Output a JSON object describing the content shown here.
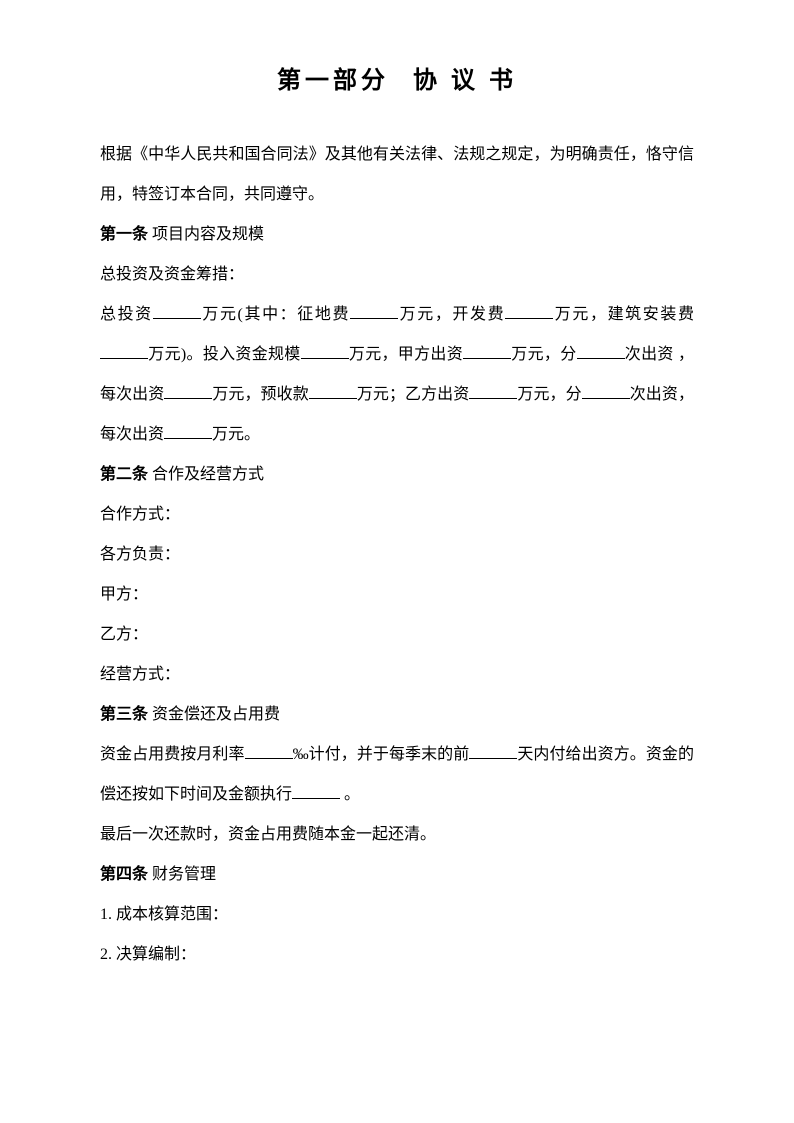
{
  "title": {
    "part1": "第一部分",
    "part2": "协 议 书"
  },
  "intro": "根据《中华人民共和国合同法》及其他有关法律、法规之规定，为明确责任，恪守信用，特签订本合同，共同遵守。",
  "article1": {
    "label": "第一条",
    "title": "项目内容及规模",
    "line1": "总投资及资金筹措：",
    "text_parts": {
      "p1": "总投资",
      "p2": "万元(其中：征地费",
      "p3": "万元，开发费",
      "p4": "万元，建筑安装费",
      "p5": "万元)。投入资金规模",
      "p6": "万元，甲方出资",
      "p7": "万元，分",
      "p8": "次出资 ，每次出资",
      "p9": "万元，预收款",
      "p10": "万元；乙方出资",
      "p11": "万元，分",
      "p12": "次出资， 每次出资",
      "p13": "万元。"
    }
  },
  "article2": {
    "label": "第二条",
    "title": "合作及经营方式",
    "lines": [
      "合作方式：",
      "各方负责：",
      "甲方：",
      "乙方：",
      "经营方式："
    ]
  },
  "article3": {
    "label": "第三条",
    "title": "资金偿还及占用费",
    "text_parts": {
      "p1": "资金占用费按月利率",
      "p2": "‰计付，并于每季末的前",
      "p3": "天内付给出资方。资金的偿还按如下时间及金额执行",
      "p4": " 。"
    },
    "line2": "最后一次还款时，资金占用费随本金一起还清。"
  },
  "article4": {
    "label": "第四条",
    "title": "财务管理",
    "items": [
      "1. 成本核算范围：",
      "2. 决算编制："
    ]
  }
}
